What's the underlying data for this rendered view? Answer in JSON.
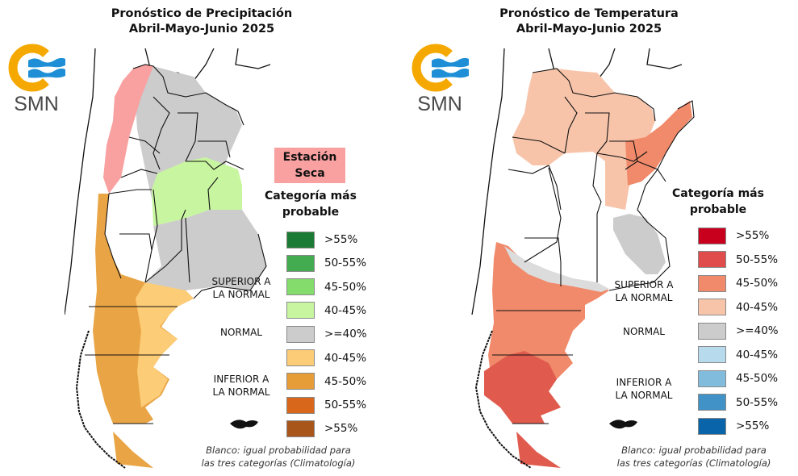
{
  "precipitation": {
    "title_line1": "Pronóstico de Precipitación",
    "title_line2": "Abril-Mayo-Junio 2025",
    "logo_text": "SMN",
    "dry_season_line1": "Estación",
    "dry_season_line2": "Seca",
    "dry_season_color": "#f9a0a0",
    "legend_title_line1": "Categoría más",
    "legend_title_line2": "probable",
    "legend": [
      {
        "label": ">55%",
        "color": "#1b7a33"
      },
      {
        "label": "50-55%",
        "color": "#43ac50"
      },
      {
        "label": "45-50%",
        "color": "#84dc6d"
      },
      {
        "label": "40-45%",
        "color": "#c8f5a0"
      },
      {
        "label": ">=40%",
        "color": "#cccccc"
      },
      {
        "label": "40-45%",
        "color": "#fdcc76"
      },
      {
        "label": "45-50%",
        "color": "#e69d38"
      },
      {
        "label": "50-55%",
        "color": "#d9671b"
      },
      {
        "label": ">55%",
        "color": "#a8561a"
      }
    ],
    "cat_above_line1": "SUPERIOR A",
    "cat_above_line2": "LA NORMAL",
    "cat_normal": "NORMAL",
    "cat_below_line1": "INFERIOR A",
    "cat_below_line2": "LA NORMAL",
    "note_line1": "Blanco: igual probabilidad para",
    "note_line2": "las tres categorías (Climatología)"
  },
  "temperature": {
    "title_line1": "Pronóstico de Temperatura",
    "title_line2": "Abril-Mayo-Junio 2025",
    "logo_text": "SMN",
    "legend_title_line1": "Categoría más",
    "legend_title_line2": "probable",
    "legend": [
      {
        "label": ">55%",
        "color": "#c8001e"
      },
      {
        "label": "50-55%",
        "color": "#e04b4b"
      },
      {
        "label": "45-50%",
        "color": "#f08a6a"
      },
      {
        "label": "40-45%",
        "color": "#f7c4aa"
      },
      {
        "label": ">=40%",
        "color": "#cccccc"
      },
      {
        "label": "40-45%",
        "color": "#b8daed"
      },
      {
        "label": "45-50%",
        "color": "#82bcdc"
      },
      {
        "label": "50-55%",
        "color": "#4192c6"
      },
      {
        "label": ">55%",
        "color": "#0a64aa"
      }
    ],
    "cat_above_line1": "SUPERIOR A",
    "cat_above_line2": "LA NORMAL",
    "cat_normal": "NORMAL",
    "cat_below_line1": "INFERIOR A",
    "cat_below_line2": "LA NORMAL",
    "note_line1": "Blanco: igual probabilidad para",
    "note_line2": "las tres categorías (Climatología)"
  },
  "colors": {
    "logo_sun": "#f5a800",
    "logo_waves": "#1e8fd6",
    "border": "#111111"
  }
}
